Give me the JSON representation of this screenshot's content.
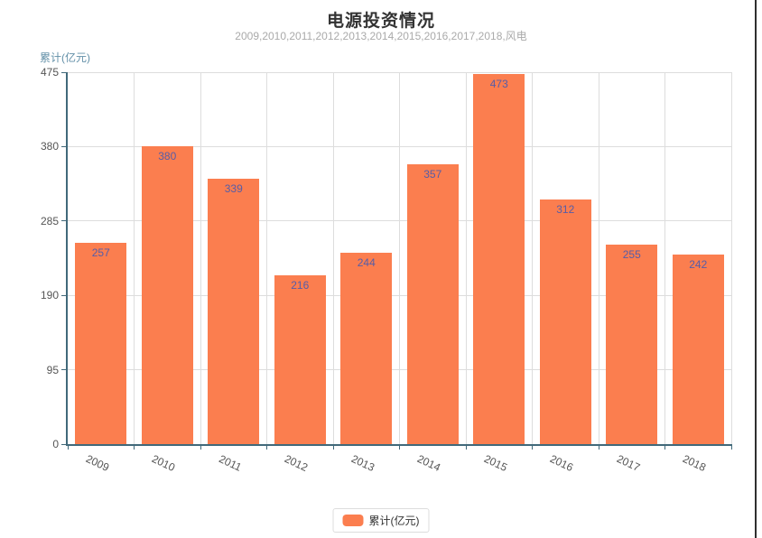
{
  "chart_data": {
    "type": "bar",
    "title": "电源投资情况",
    "subtitle": "2009,2010,2011,2012,2013,2014,2015,2016,2017,2018,风电",
    "ylabel": "累计(亿元)",
    "xlabel": "",
    "categories": [
      "2009",
      "2010",
      "2011",
      "2012",
      "2013",
      "2014",
      "2015",
      "2016",
      "2017",
      "2018"
    ],
    "values": [
      257,
      380,
      339,
      216,
      244,
      357,
      473,
      312,
      255,
      242
    ],
    "ylim": [
      0,
      475
    ],
    "yticks": [
      0,
      95,
      190,
      285,
      380,
      475
    ],
    "grid": "both",
    "x_label_rotation_deg": 25,
    "legend": {
      "position": "bottom-center",
      "items": [
        {
          "label": "累计(亿元)",
          "color": "#fb7e4f"
        }
      ]
    },
    "colors": {
      "bar": "#fb7e4f",
      "value_label": "#565da8",
      "axis_line": "#41697a",
      "grid_line": "#dddddd",
      "tick_label": "#555555",
      "title": "#333333",
      "subtitle": "#aaaaaa",
      "ylabel": "#6390a8",
      "background": "#ffffff"
    }
  }
}
